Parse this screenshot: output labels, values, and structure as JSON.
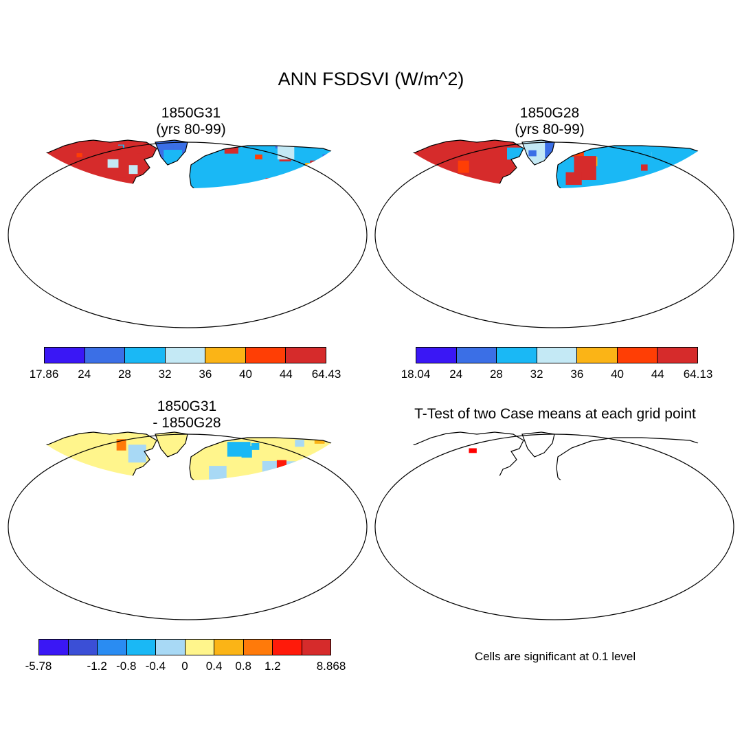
{
  "title": "ANN FSDSVI (W/m^2)",
  "panels": [
    {
      "id": "case1",
      "title_lines": [
        "1850G31",
        "(yrs 80-99)"
      ],
      "colorbar": {
        "colors": [
          "#3a17f5",
          "#3b6fe6",
          "#1ab8f5",
          "#c4e9f5",
          "#fbb416",
          "#ff3e05",
          "#d62b2b"
        ],
        "labels": [
          "17.86",
          "24",
          "28",
          "32",
          "36",
          "40",
          "44",
          "64.43"
        ]
      }
    },
    {
      "id": "case2",
      "title_lines": [
        "1850G28",
        "(yrs 80-99)"
      ],
      "colorbar": {
        "colors": [
          "#3a17f5",
          "#3b6fe6",
          "#1ab8f5",
          "#c4e9f5",
          "#fbb416",
          "#ff3e05",
          "#d62b2b"
        ],
        "labels": [
          "18.04",
          "24",
          "28",
          "32",
          "36",
          "40",
          "44",
          "64.13"
        ]
      }
    },
    {
      "id": "difference",
      "title_lines": [
        "1850G31",
        "- 1850G28"
      ],
      "colorbar": {
        "colors": [
          "#3a17f5",
          "#3b4fd6",
          "#2a8cf2",
          "#1ab8f5",
          "#a8d9f5",
          "#fff58c",
          "#fbb416",
          "#ff7a0a",
          "#ff1a0a",
          "#d62b2b"
        ],
        "labels": [
          "-5.78",
          "",
          "-1.2",
          "-0.8",
          "-0.4",
          "0",
          "0.4",
          "0.8",
          "1.2",
          "",
          "8.868"
        ]
      }
    },
    {
      "id": "ttest",
      "title_lines": [
        "T-Test of two Case means at each grid point"
      ],
      "note": "Cells are significant at 0.1 level"
    }
  ],
  "colors": {
    "significant": "#ff0000",
    "coastline": "#000000"
  }
}
